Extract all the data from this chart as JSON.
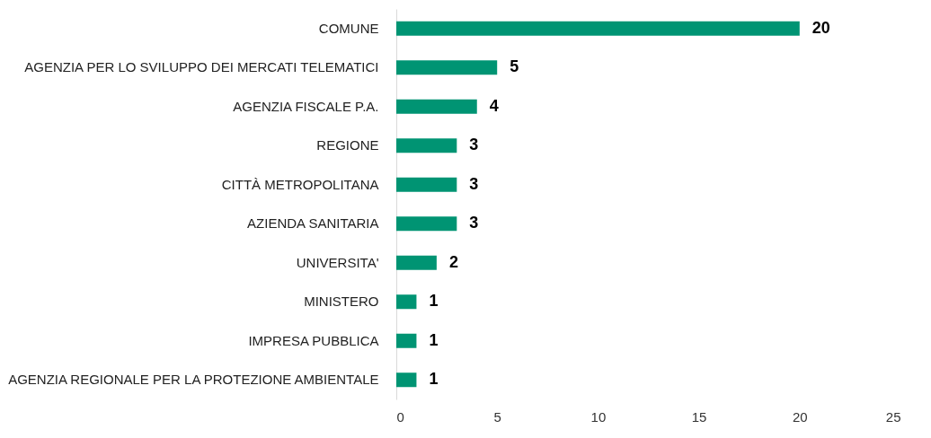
{
  "chart_data": {
    "type": "bar",
    "orientation": "horizontal",
    "categories": [
      "COMUNE",
      "AGENZIA PER LO SVILUPPO DEI MERCATI TELEMATICI",
      "AGENZIA FISCALE P.A.",
      "REGIONE",
      "CITTÀ METROPOLITANA",
      "AZIENDA SANITARIA",
      "UNIVERSITA'",
      "MINISTERO",
      "IMPRESA PUBBLICA",
      "AGENZIA REGIONALE PER LA PROTEZIONE AMBIENTALE"
    ],
    "values": [
      20,
      5,
      4,
      3,
      3,
      3,
      2,
      1,
      1,
      1
    ],
    "color": "#009473",
    "xlim": [
      0,
      25
    ],
    "xticks": [
      0,
      5,
      10,
      15,
      20,
      25
    ],
    "grid": false,
    "data_labels": true
  }
}
